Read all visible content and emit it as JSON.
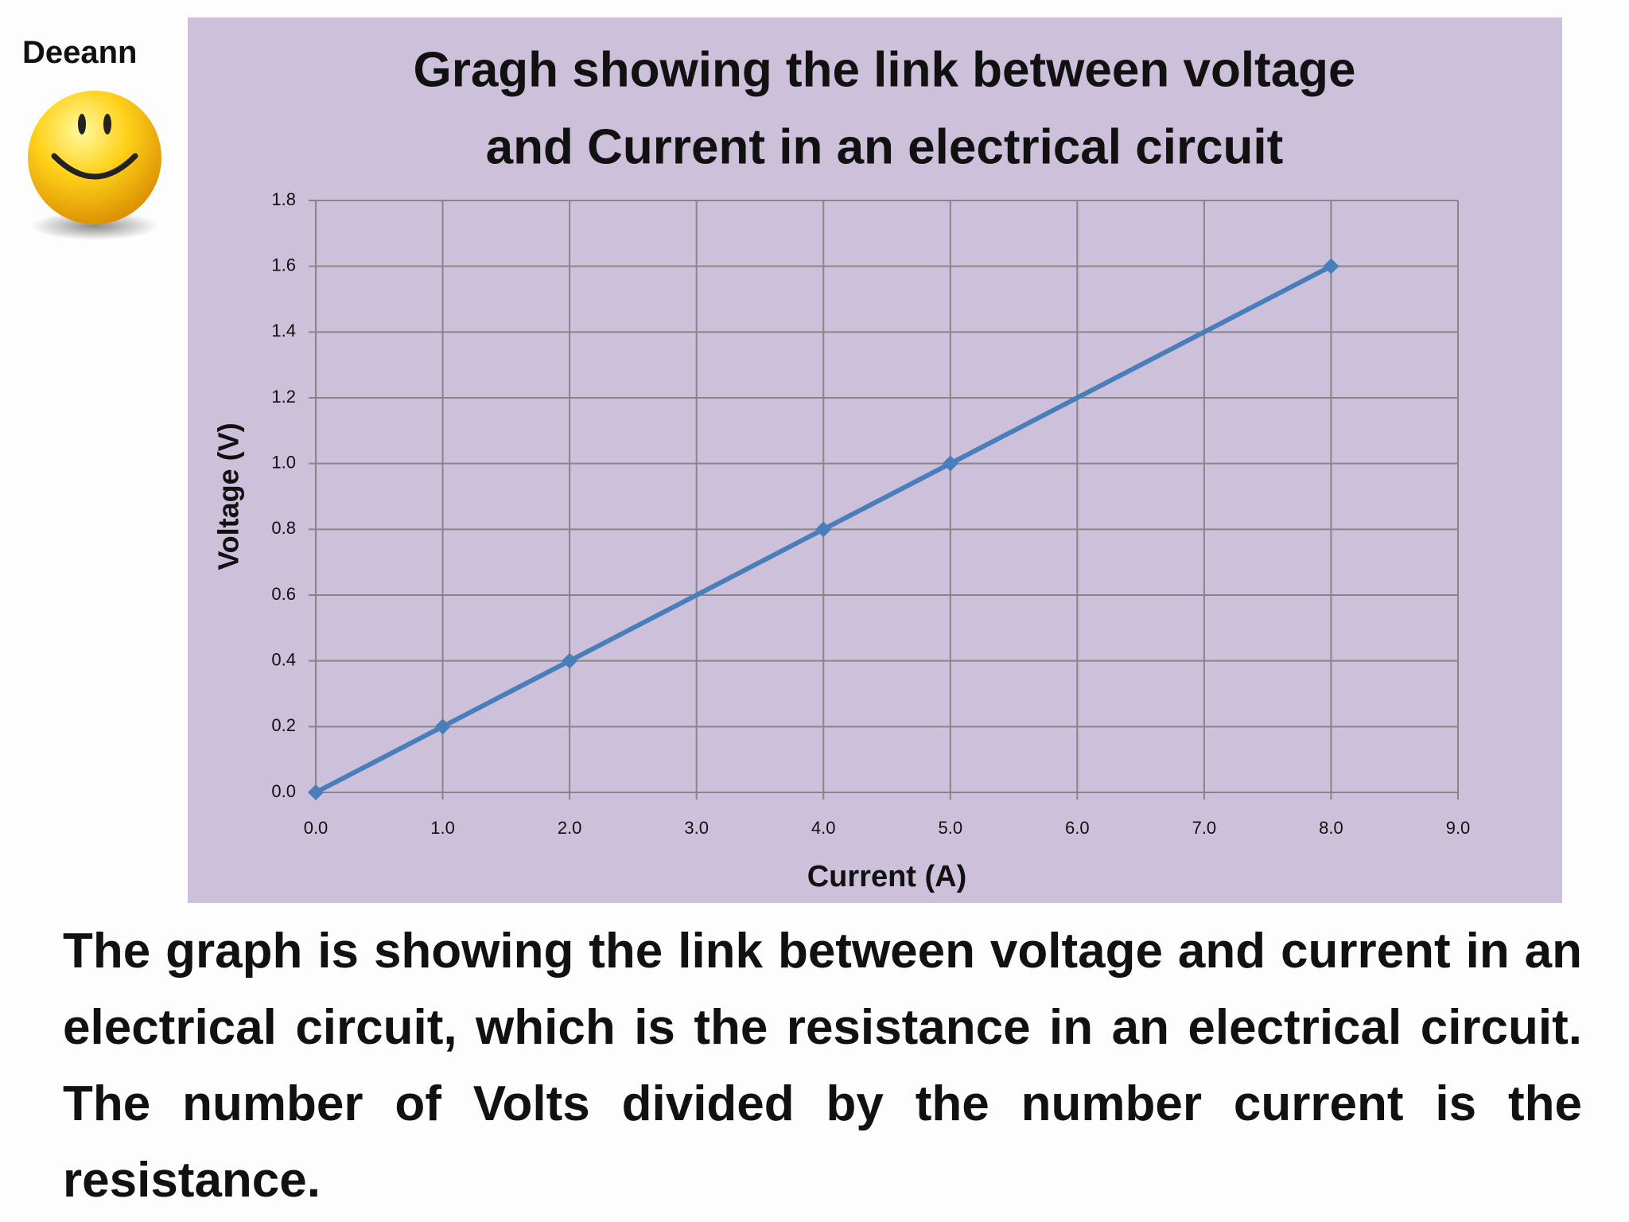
{
  "author": "Deeann",
  "description": "The graph is showing the link between voltage and current in an electrical circuit, which is the resistance in an electrical circuit. The number of Volts divided by the number current is the resistance.",
  "chart_data": {
    "type": "line",
    "title": [
      "Gragh showing the link between voltage",
      "and Current in an electrical circuit"
    ],
    "x_label": "Current (A)",
    "y_label": "Voltage (V)",
    "x": [
      0,
      1,
      2,
      4,
      5,
      8
    ],
    "values": [
      0,
      0.2,
      0.4,
      0.8,
      1.0,
      1.6
    ],
    "color": "#4a7ebb",
    "xlim": [
      0,
      9
    ],
    "xticks": [
      {
        "value": 0,
        "label": "0.0"
      },
      {
        "value": 1,
        "label": "1.0"
      },
      {
        "value": 2,
        "label": "2.0"
      },
      {
        "value": 3,
        "label": "3.0"
      },
      {
        "value": 4,
        "label": "4.0"
      },
      {
        "value": 5,
        "label": "5.0"
      },
      {
        "value": 6,
        "label": "6.0"
      },
      {
        "value": 7,
        "label": "7.0"
      },
      {
        "value": 8,
        "label": "8.0"
      },
      {
        "value": 9,
        "label": "9.0"
      }
    ],
    "ylim": [
      0,
      1.8
    ],
    "yticks": [
      {
        "value": 0,
        "label": "0.0"
      },
      0.2,
      0.4,
      0.6,
      0.8,
      {
        "value": 1,
        "label": "1.0"
      },
      1.2,
      1.4,
      1.6,
      1.8
    ],
    "grid": true
  }
}
